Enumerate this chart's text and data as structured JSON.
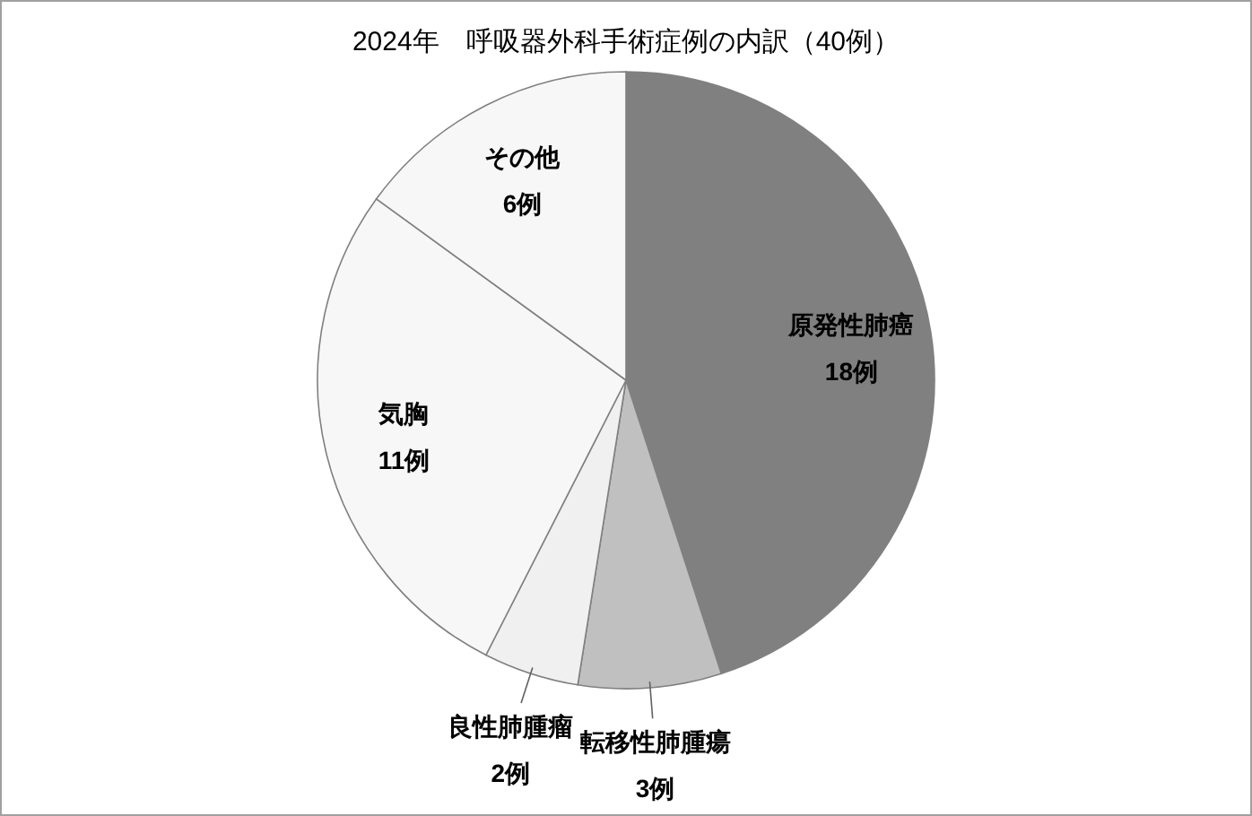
{
  "chart_data": {
    "type": "pie",
    "title": "2024年　呼吸器外科手術症例の内訳（40例）",
    "categories": [
      "原発性肺癌",
      "転移性肺腫瘍",
      "良性肺腫瘤",
      "気胸",
      "その他"
    ],
    "values": [
      18,
      3,
      2,
      11,
      6
    ],
    "value_labels": [
      "18例",
      "3例",
      "2例",
      "11例",
      "6例"
    ],
    "colors": [
      "#808080",
      "#c0c0c0",
      "#f0f0f0",
      "#f7f7f7",
      "#f7f7f7"
    ],
    "legend": false
  }
}
